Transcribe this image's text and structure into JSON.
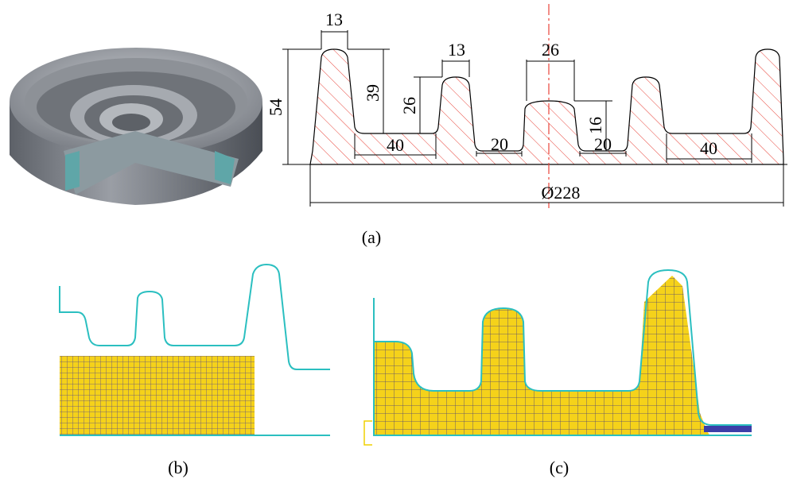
{
  "part_a": {
    "dimensions": [
      "13",
      "13",
      "26",
      "54",
      "39",
      "26",
      "16",
      "40",
      "20",
      "20",
      "40",
      "Ø228"
    ]
  },
  "captions": [
    "(a)",
    "(b)",
    "(c)"
  ]
}
